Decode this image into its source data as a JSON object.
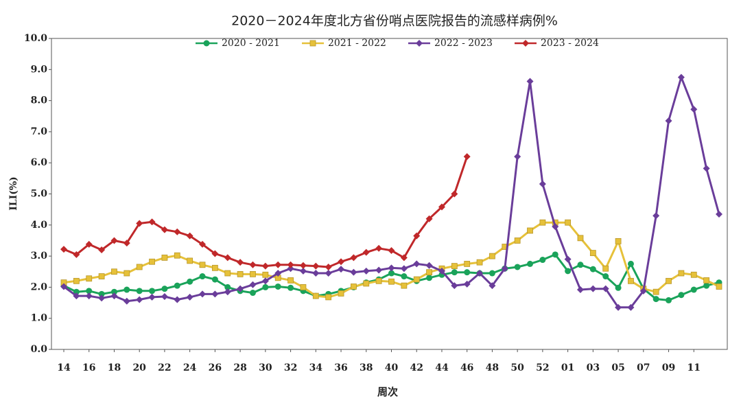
{
  "chart_data": {
    "type": "line",
    "title": "2020－2024年度北方省份哨点医院报告的流感样病例%",
    "xlabel": "周次",
    "ylabel": "ILI(%)",
    "categories": [
      "14",
      null,
      "16",
      null,
      "18",
      null,
      "20",
      null,
      "22",
      null,
      "24",
      null,
      "26",
      null,
      "28",
      null,
      "30",
      null,
      "32",
      null,
      "34",
      null,
      "36",
      null,
      "38",
      null,
      "40",
      null,
      "42",
      null,
      "44",
      null,
      "46",
      null,
      "48",
      null,
      "50",
      null,
      "52",
      null,
      "01",
      null,
      "03",
      null,
      "05",
      null,
      "07",
      null,
      "09",
      null,
      "11",
      null,
      null
    ],
    "ylim": [
      0,
      10
    ],
    "yticks": [
      {
        "value": 0,
        "label": "0.0"
      },
      {
        "value": 1,
        "label": "1.0"
      },
      {
        "value": 2,
        "label": "2.0"
      },
      {
        "value": 3,
        "label": "3.0"
      },
      {
        "value": 4,
        "label": "4.0"
      },
      {
        "value": 5,
        "label": "5.0"
      },
      {
        "value": 6,
        "label": "6.0"
      },
      {
        "value": 7,
        "label": "7.0"
      },
      {
        "value": 8,
        "label": "8.0"
      },
      {
        "value": 9,
        "label": "9.0"
      },
      {
        "value": 10,
        "label": "10.0"
      }
    ],
    "grid": false,
    "legend": "top",
    "series": [
      {
        "name": "2020 - 2021",
        "color": "#1aa35a",
        "marker": "circle",
        "values": [
          2.05,
          1.85,
          1.88,
          1.78,
          1.85,
          1.92,
          1.88,
          1.88,
          1.95,
          2.05,
          2.18,
          2.35,
          2.25,
          2.0,
          1.88,
          1.82,
          2.0,
          2.02,
          1.98,
          1.88,
          1.72,
          1.78,
          1.88,
          2.0,
          2.15,
          2.25,
          2.45,
          2.35,
          2.2,
          2.3,
          2.4,
          2.48,
          2.48,
          2.45,
          2.45,
          2.6,
          2.65,
          2.75,
          2.88,
          3.05,
          2.52,
          2.72,
          2.58,
          2.35,
          1.98,
          2.75,
          1.95,
          1.62,
          1.58,
          1.75,
          1.92,
          2.05,
          2.15
        ]
      },
      {
        "name": "2021 - 2022",
        "color": "#e6c13a",
        "marker": "square",
        "values": [
          2.15,
          2.2,
          2.28,
          2.35,
          2.5,
          2.45,
          2.65,
          2.82,
          2.95,
          3.02,
          2.85,
          2.72,
          2.62,
          2.45,
          2.42,
          2.42,
          2.4,
          2.3,
          2.22,
          2.0,
          1.72,
          1.68,
          1.8,
          2.02,
          2.12,
          2.2,
          2.18,
          2.05,
          2.25,
          2.48,
          2.6,
          2.68,
          2.75,
          2.8,
          3.0,
          3.3,
          3.5,
          3.82,
          4.08,
          4.08,
          4.08,
          3.58,
          3.1,
          2.6,
          3.48,
          2.2,
          1.95,
          1.85,
          2.2,
          2.45,
          2.4,
          2.22,
          2.02
        ]
      },
      {
        "name": "2022 - 2023",
        "color": "#6a3d9a",
        "marker": "diamond",
        "values": [
          2.02,
          1.72,
          1.72,
          1.65,
          1.72,
          1.55,
          1.6,
          1.68,
          1.7,
          1.6,
          1.68,
          1.78,
          1.78,
          1.85,
          1.95,
          2.08,
          2.2,
          2.45,
          2.6,
          2.52,
          2.45,
          2.45,
          2.58,
          2.48,
          2.52,
          2.55,
          2.62,
          2.6,
          2.75,
          2.7,
          2.52,
          2.05,
          2.1,
          2.45,
          2.05,
          2.6,
          6.2,
          8.62,
          5.32,
          3.95,
          2.9,
          1.92,
          1.95,
          1.95,
          1.35,
          1.35,
          1.88,
          4.3,
          7.35,
          8.75,
          7.72,
          5.82,
          4.35
        ]
      },
      {
        "name": "2023 - 2024",
        "color": "#c0282a",
        "marker": "diamond",
        "values": [
          3.22,
          3.05,
          3.38,
          3.2,
          3.5,
          3.42,
          4.05,
          4.1,
          3.85,
          3.78,
          3.65,
          3.38,
          3.08,
          2.95,
          2.8,
          2.72,
          2.68,
          2.72,
          2.72,
          2.7,
          2.68,
          2.65,
          2.82,
          2.95,
          3.12,
          3.25,
          3.18,
          2.95,
          3.65,
          4.2,
          4.58,
          5.0,
          6.2,
          null,
          null,
          null,
          null,
          null,
          null,
          null,
          null,
          null,
          null,
          null,
          null,
          null,
          null,
          null,
          null,
          null,
          null,
          null,
          null
        ]
      }
    ]
  }
}
